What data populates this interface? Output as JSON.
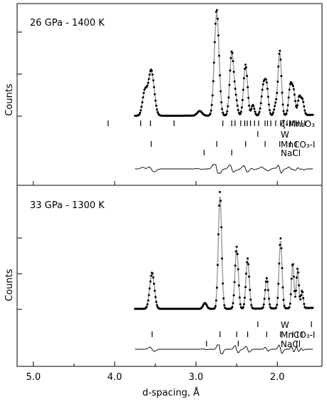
{
  "chart_data": [
    {
      "type": "scatter",
      "title": "26 GPa - 1400 K",
      "xlabel": "d-spacing, Å",
      "ylabel": "Counts",
      "xlim": [
        5.2,
        1.45
      ],
      "x_reversed": true,
      "xticks": [
        "5.0",
        "4.0",
        "3.0",
        "2.0"
      ],
      "xtick_values": [
        5.0,
        4.0,
        3.0,
        2.0
      ],
      "ylim": [
        -0.25,
        5.4
      ],
      "series": [
        {
          "name": "observed",
          "style": "markers",
          "peaks": [
            {
              "d": 3.63,
              "h": 1.1,
              "w": 0.028
            },
            {
              "d": 3.55,
              "h": 2.15,
              "w": 0.035
            },
            {
              "d": 2.955,
              "h": 0.22,
              "w": 0.03
            },
            {
              "d": 2.745,
              "h": 5.0,
              "w": 0.028
            },
            {
              "d": 2.56,
              "h": 3.0,
              "w": 0.024
            },
            {
              "d": 2.51,
              "h": 0.7,
              "w": 0.02
            },
            {
              "d": 2.39,
              "h": 2.4,
              "w": 0.024
            },
            {
              "d": 2.3,
              "h": 0.5,
              "w": 0.018
            },
            {
              "d": 2.17,
              "h": 1.4,
              "w": 0.024
            },
            {
              "d": 2.13,
              "h": 1.2,
              "w": 0.02
            },
            {
              "d": 2.02,
              "h": 0.5,
              "w": 0.018
            },
            {
              "d": 1.97,
              "h": 3.05,
              "w": 0.02
            },
            {
              "d": 1.84,
              "h": 1.35,
              "w": 0.02
            },
            {
              "d": 1.8,
              "h": 1.1,
              "w": 0.02
            },
            {
              "d": 1.73,
              "h": 0.85,
              "w": 0.018
            },
            {
              "d": 1.69,
              "h": 0.7,
              "w": 0.018
            }
          ]
        },
        {
          "name": "calculated",
          "style": "gray-line"
        },
        {
          "name": "difference",
          "style": "line"
        }
      ],
      "tick_rows": [
        {
          "label": "ζ-Mn₂O₃",
          "d": [
            4.08,
            3.68,
            3.56,
            3.27,
            2.67,
            2.56,
            2.52,
            2.45,
            2.4,
            2.37,
            2.33,
            2.28,
            2.23,
            2.15,
            2.12,
            2.08,
            2.02,
            1.96,
            1.92,
            1.88,
            1.84,
            1.81,
            1.77,
            1.74,
            1.7,
            1.66
          ]
        },
        {
          "label": "W",
          "d": [
            2.24
          ]
        },
        {
          "label": "MnCO₃-I",
          "d": [
            3.55,
            2.745,
            2.39,
            2.15,
            1.97,
            1.84,
            1.77
          ]
        },
        {
          "label": "NaCl",
          "d": [
            2.9,
            2.56,
            1.8
          ]
        }
      ]
    },
    {
      "type": "scatter",
      "title": "33 GPa - 1300 K",
      "xlabel": "d-spacing, Å",
      "ylabel": "Counts",
      "xlim": [
        5.2,
        1.45
      ],
      "x_reversed": true,
      "xticks": [
        "5.0",
        "4.0",
        "3.0",
        "2.0"
      ],
      "xtick_values": [
        5.0,
        4.0,
        3.0,
        2.0
      ],
      "ylim": [
        -0.9,
        5.4
      ],
      "series": [
        {
          "name": "observed",
          "style": "markers",
          "peaks": [
            {
              "d": 3.54,
              "h": 1.55,
              "w": 0.028
            },
            {
              "d": 2.89,
              "h": 0.25,
              "w": 0.022
            },
            {
              "d": 2.705,
              "h": 5.0,
              "w": 0.02
            },
            {
              "d": 2.5,
              "h": 2.65,
              "w": 0.02
            },
            {
              "d": 2.365,
              "h": 2.15,
              "w": 0.02
            },
            {
              "d": 2.13,
              "h": 1.3,
              "w": 0.018
            },
            {
              "d": 1.96,
              "h": 3.0,
              "w": 0.018
            },
            {
              "d": 1.81,
              "h": 1.95,
              "w": 0.015
            },
            {
              "d": 1.75,
              "h": 1.7,
              "w": 0.015
            },
            {
              "d": 1.695,
              "h": 0.75,
              "w": 0.014
            }
          ]
        },
        {
          "name": "calculated",
          "style": "gray-line"
        },
        {
          "name": "difference",
          "style": "line"
        }
      ],
      "tick_rows": [
        {
          "label": "W",
          "d": [
            2.24,
            1.58
          ]
        },
        {
          "label": "MnCO₃-I",
          "d": [
            3.54,
            2.705,
            2.5,
            2.365,
            2.13,
            1.96,
            1.81,
            1.75,
            1.695
          ]
        },
        {
          "label": "NaCl",
          "d": [
            2.87,
            2.48,
            1.76
          ]
        }
      ]
    }
  ]
}
